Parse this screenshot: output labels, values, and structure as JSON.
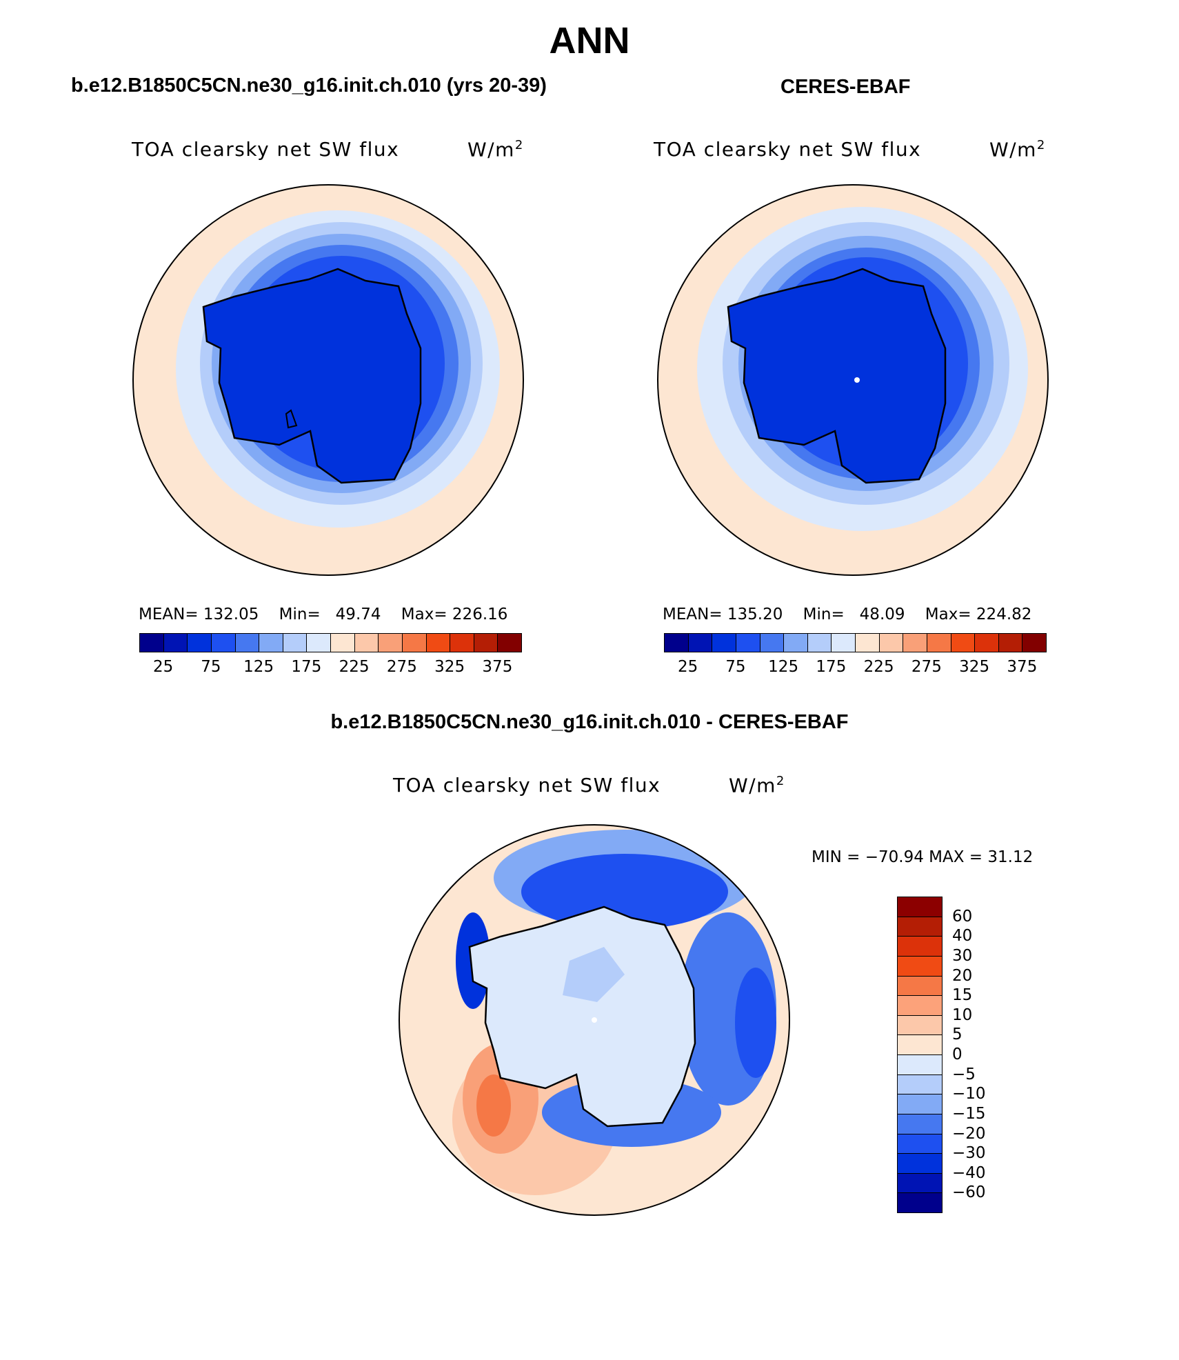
{
  "page_title": "ANN",
  "left_panel": {
    "subtitle": "b.e12.B1850C5CN.ne30_g16.init.ch.010 (yrs 20-39)",
    "variable": "TOA clearsky net SW flux",
    "units": "W/m",
    "units_sup": "2",
    "stats": {
      "mean_label": "MEAN=",
      "mean": "132.05",
      "min_label": "Min=",
      "min": "49.74",
      "max_label": "Max=",
      "max": "226.16"
    }
  },
  "right_panel": {
    "subtitle": "CERES-EBAF",
    "variable": "TOA clearsky net SW flux",
    "units": "W/m",
    "units_sup": "2",
    "stats": {
      "mean_label": "MEAN=",
      "mean": "135.20",
      "min_label": "Min=",
      "min": "48.09",
      "max_label": "Max=",
      "max": "224.82"
    }
  },
  "diff_panel": {
    "subtitle": "b.e12.B1850C5CN.ne30_g16.init.ch.010 - CERES-EBAF",
    "variable": "TOA clearsky net SW flux",
    "units": "W/m",
    "units_sup": "2",
    "minmax": "MIN = −70.94 MAX =   31.12"
  },
  "abs_colorbar": {
    "colors": [
      "#00008c",
      "#0014b4",
      "#0032dc",
      "#1e50f0",
      "#4678f0",
      "#82aaf5",
      "#b4cdfa",
      "#dce9fc",
      "#fde6d2",
      "#fcc8aa",
      "#f9a078",
      "#f57846",
      "#f04b14",
      "#dc320a",
      "#b41e05",
      "#820000"
    ],
    "labels": [
      "25",
      "75",
      "125",
      "175",
      "225",
      "275",
      "325",
      "375"
    ]
  },
  "diff_colorbar": {
    "colors_top_to_bottom": [
      "#8c0000",
      "#b41e05",
      "#dc320a",
      "#f04b14",
      "#f57846",
      "#fca27a",
      "#fcc8aa",
      "#fde6d2",
      "#dce9fc",
      "#b4cdfa",
      "#82aaf5",
      "#4678f0",
      "#1e50f0",
      "#0032dc",
      "#0014b4",
      "#00008c"
    ],
    "labels": [
      "60",
      "40",
      "30",
      "20",
      "15",
      "10",
      "5",
      "0",
      "−5",
      "−10",
      "−15",
      "−20",
      "−30",
      "−40",
      "−60"
    ]
  }
}
